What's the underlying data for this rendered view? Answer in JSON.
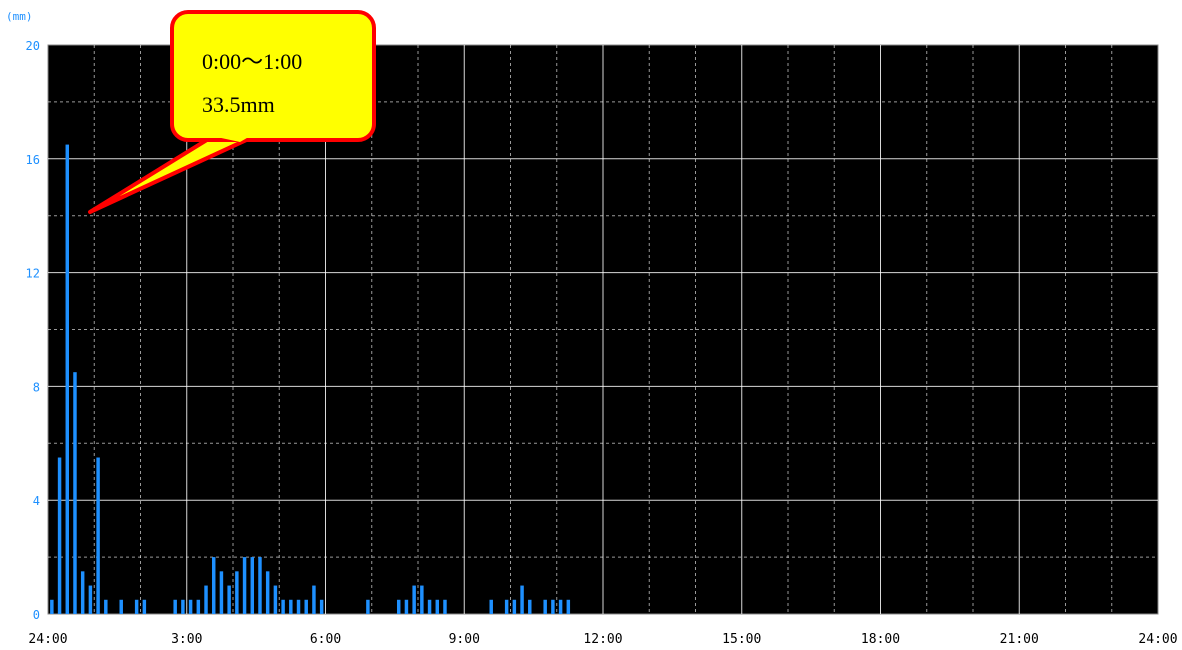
{
  "chart_data": {
    "type": "bar",
    "y_unit": "(mm)",
    "ylim": [
      0,
      20
    ],
    "y_ticks": [
      0,
      4,
      8,
      12,
      16,
      20
    ],
    "x_ticks": [
      "24:00",
      "3:00",
      "6:00",
      "9:00",
      "12:00",
      "15:00",
      "18:00",
      "21:00",
      "24:00"
    ],
    "interval_minutes": 10,
    "grid": true,
    "bar_color": "#1e90ff",
    "plot_background": "#000000",
    "values": [
      0.5,
      5.5,
      16.5,
      8.5,
      1.5,
      1.0,
      5.5,
      0.5,
      0,
      0.5,
      0,
      0.5,
      0.5,
      0,
      0,
      0,
      0.5,
      0.5,
      0.5,
      0.5,
      1.0,
      2.0,
      1.5,
      1.0,
      1.5,
      2.0,
      2.0,
      2.0,
      1.5,
      1.0,
      0.5,
      0.5,
      0.5,
      0.5,
      1.0,
      0.5,
      0,
      0,
      0,
      0,
      0,
      0.5,
      0,
      0,
      0,
      0.5,
      0.5,
      1.0,
      1.0,
      0.5,
      0.5,
      0.5,
      0,
      0,
      0,
      0,
      0,
      0.5,
      0,
      0.5,
      0.5,
      1.0,
      0.5,
      0,
      0.5,
      0.5,
      0.5,
      0.5,
      0,
      0,
      0,
      0,
      0,
      0,
      0,
      0,
      0,
      0,
      0,
      0,
      0,
      0,
      0,
      0,
      0,
      0,
      0,
      0,
      0,
      0,
      0,
      0,
      0,
      0,
      0,
      0,
      0,
      0,
      0,
      0,
      0,
      0,
      0,
      0,
      0,
      0,
      0,
      0,
      0,
      0,
      0,
      0,
      0,
      0,
      0,
      0,
      0,
      0,
      0,
      0,
      0,
      0,
      0,
      0,
      0,
      0,
      0,
      0,
      0,
      0,
      0,
      0,
      0,
      0,
      0,
      0,
      0,
      0,
      0,
      0,
      0,
      0,
      0,
      0
    ]
  },
  "callout": {
    "line1": "0:00～1:00",
    "line2": "33.5mm",
    "fill": "#ffff00",
    "border": "#ff0000"
  }
}
